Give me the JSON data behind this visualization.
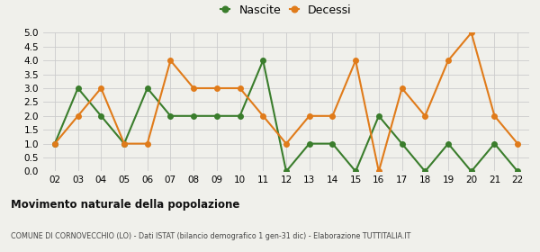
{
  "years": [
    "02",
    "03",
    "04",
    "05",
    "06",
    "07",
    "08",
    "09",
    "10",
    "11",
    "12",
    "13",
    "14",
    "15",
    "16",
    "17",
    "18",
    "19",
    "20",
    "21",
    "22"
  ],
  "nascite": [
    1,
    3,
    2,
    1,
    3,
    2,
    2,
    2,
    2,
    4,
    0,
    1,
    1,
    0,
    2,
    1,
    0,
    1,
    0,
    1,
    0
  ],
  "decessi": [
    1,
    2,
    3,
    1,
    1,
    4,
    3,
    3,
    3,
    2,
    1,
    2,
    2,
    4,
    0,
    3,
    2,
    4,
    5,
    2,
    1
  ],
  "nascite_color": "#3a7d2c",
  "decessi_color": "#e07b1a",
  "bg_color": "#f0f0eb",
  "grid_color": "#cccccc",
  "ylim": [
    0,
    5.0
  ],
  "yticks": [
    0,
    0.5,
    1.0,
    1.5,
    2.0,
    2.5,
    3.0,
    3.5,
    4.0,
    4.5,
    5.0
  ],
  "legend_nascite": "Nascite",
  "legend_decessi": "Decessi",
  "title": "Movimento naturale della popolazione",
  "subtitle": "COMUNE DI CORNOVECCHIO (LO) - Dati ISTAT (bilancio demografico 1 gen-31 dic) - Elaborazione TUTTITALIA.IT",
  "marker_size": 4,
  "line_width": 1.5
}
